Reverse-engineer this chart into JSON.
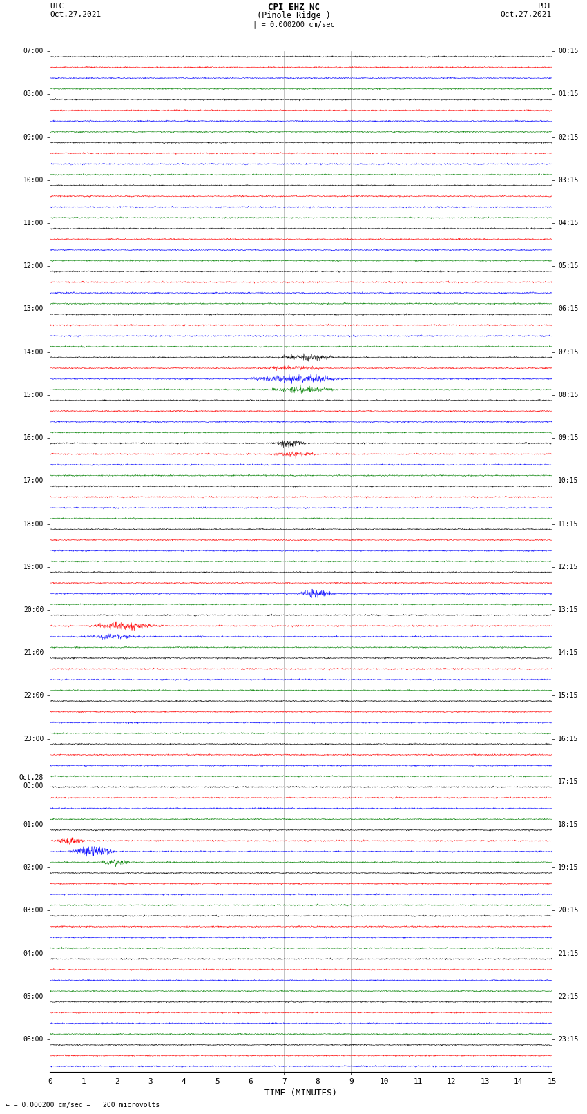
{
  "title_line1": "CPI EHZ NC",
  "title_line2": "(Pinole Ridge )",
  "scale_label": "= 0.000200 cm/sec",
  "bottom_label": "= 0.000200 cm/sec =   200 microvolts",
  "xlabel": "TIME (MINUTES)",
  "utc_label": "UTC",
  "utc_date": "Oct.27,2021",
  "pdt_label": "PDT",
  "pdt_date": "Oct.27,2021",
  "utc_times": [
    "07:00",
    "",
    "",
    "",
    "08:00",
    "",
    "",
    "",
    "09:00",
    "",
    "",
    "",
    "10:00",
    "",
    "",
    "",
    "11:00",
    "",
    "",
    "",
    "12:00",
    "",
    "",
    "",
    "13:00",
    "",
    "",
    "",
    "14:00",
    "",
    "",
    "",
    "15:00",
    "",
    "",
    "",
    "16:00",
    "",
    "",
    "",
    "17:00",
    "",
    "",
    "",
    "18:00",
    "",
    "",
    "",
    "19:00",
    "",
    "",
    "",
    "20:00",
    "",
    "",
    "",
    "21:00",
    "",
    "",
    "",
    "22:00",
    "",
    "",
    "",
    "23:00",
    "",
    "",
    "",
    "Oct.28\n00:00",
    "",
    "",
    "",
    "01:00",
    "",
    "",
    "",
    "02:00",
    "",
    "",
    "",
    "03:00",
    "",
    "",
    "",
    "04:00",
    "",
    "",
    "",
    "05:00",
    "",
    "",
    "",
    "06:00",
    "",
    ""
  ],
  "pdt_times": [
    "00:15",
    "",
    "",
    "",
    "01:15",
    "",
    "",
    "",
    "02:15",
    "",
    "",
    "",
    "03:15",
    "",
    "",
    "",
    "04:15",
    "",
    "",
    "",
    "05:15",
    "",
    "",
    "",
    "06:15",
    "",
    "",
    "",
    "07:15",
    "",
    "",
    "",
    "08:15",
    "",
    "",
    "",
    "09:15",
    "",
    "",
    "",
    "10:15",
    "",
    "",
    "",
    "11:15",
    "",
    "",
    "",
    "12:15",
    "",
    "",
    "",
    "13:15",
    "",
    "",
    "",
    "14:15",
    "",
    "",
    "",
    "15:15",
    "",
    "",
    "",
    "16:15",
    "",
    "",
    "",
    "17:15",
    "",
    "",
    "",
    "18:15",
    "",
    "",
    "",
    "19:15",
    "",
    "",
    "",
    "20:15",
    "",
    "",
    "",
    "21:15",
    "",
    "",
    "",
    "22:15",
    "",
    "",
    "",
    "23:15",
    "",
    ""
  ],
  "n_traces": 95,
  "trace_colors_cycle": [
    "black",
    "red",
    "blue",
    "green"
  ],
  "background_color": "white",
  "grid_color": "#888888",
  "minutes_ticks": [
    0,
    1,
    2,
    3,
    4,
    5,
    6,
    7,
    8,
    9,
    10,
    11,
    12,
    13,
    14,
    15
  ],
  "xmin": 0,
  "xmax": 15,
  "figsize": [
    8.5,
    16.13
  ],
  "dpi": 100
}
